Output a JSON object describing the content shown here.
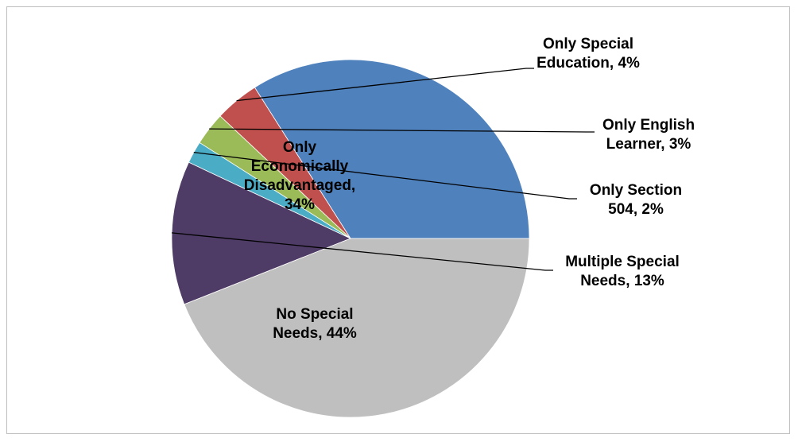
{
  "chart_data": {
    "type": "pie",
    "start_angle_deg": 0,
    "direction": "counterclockwise",
    "slices": [
      {
        "label": "Only Economically Disadvantaged",
        "display": "Only\nEconomically\nDisadvantaged,\n34%",
        "value": 34,
        "color": "#4f81bd"
      },
      {
        "label": "Only Special Education",
        "display": "Only Special\nEducation, 4%",
        "value": 4,
        "color": "#c0504d"
      },
      {
        "label": "Only English Learner",
        "display": "Only English\nLearner, 3%",
        "value": 3,
        "color": "#9bbb59"
      },
      {
        "label": "Only Section 504",
        "display": "Only Section\n504, 2%",
        "value": 2,
        "color": "#4bacc6"
      },
      {
        "label": "Multiple Special Needs",
        "display": "Multiple Special\nNeeds, 13%",
        "value": 13,
        "color": "#4f3c66"
      },
      {
        "label": "No Special Needs",
        "display": "No Special\nNeeds, 44%",
        "value": 44,
        "color": "#bfbfbf"
      }
    ]
  }
}
